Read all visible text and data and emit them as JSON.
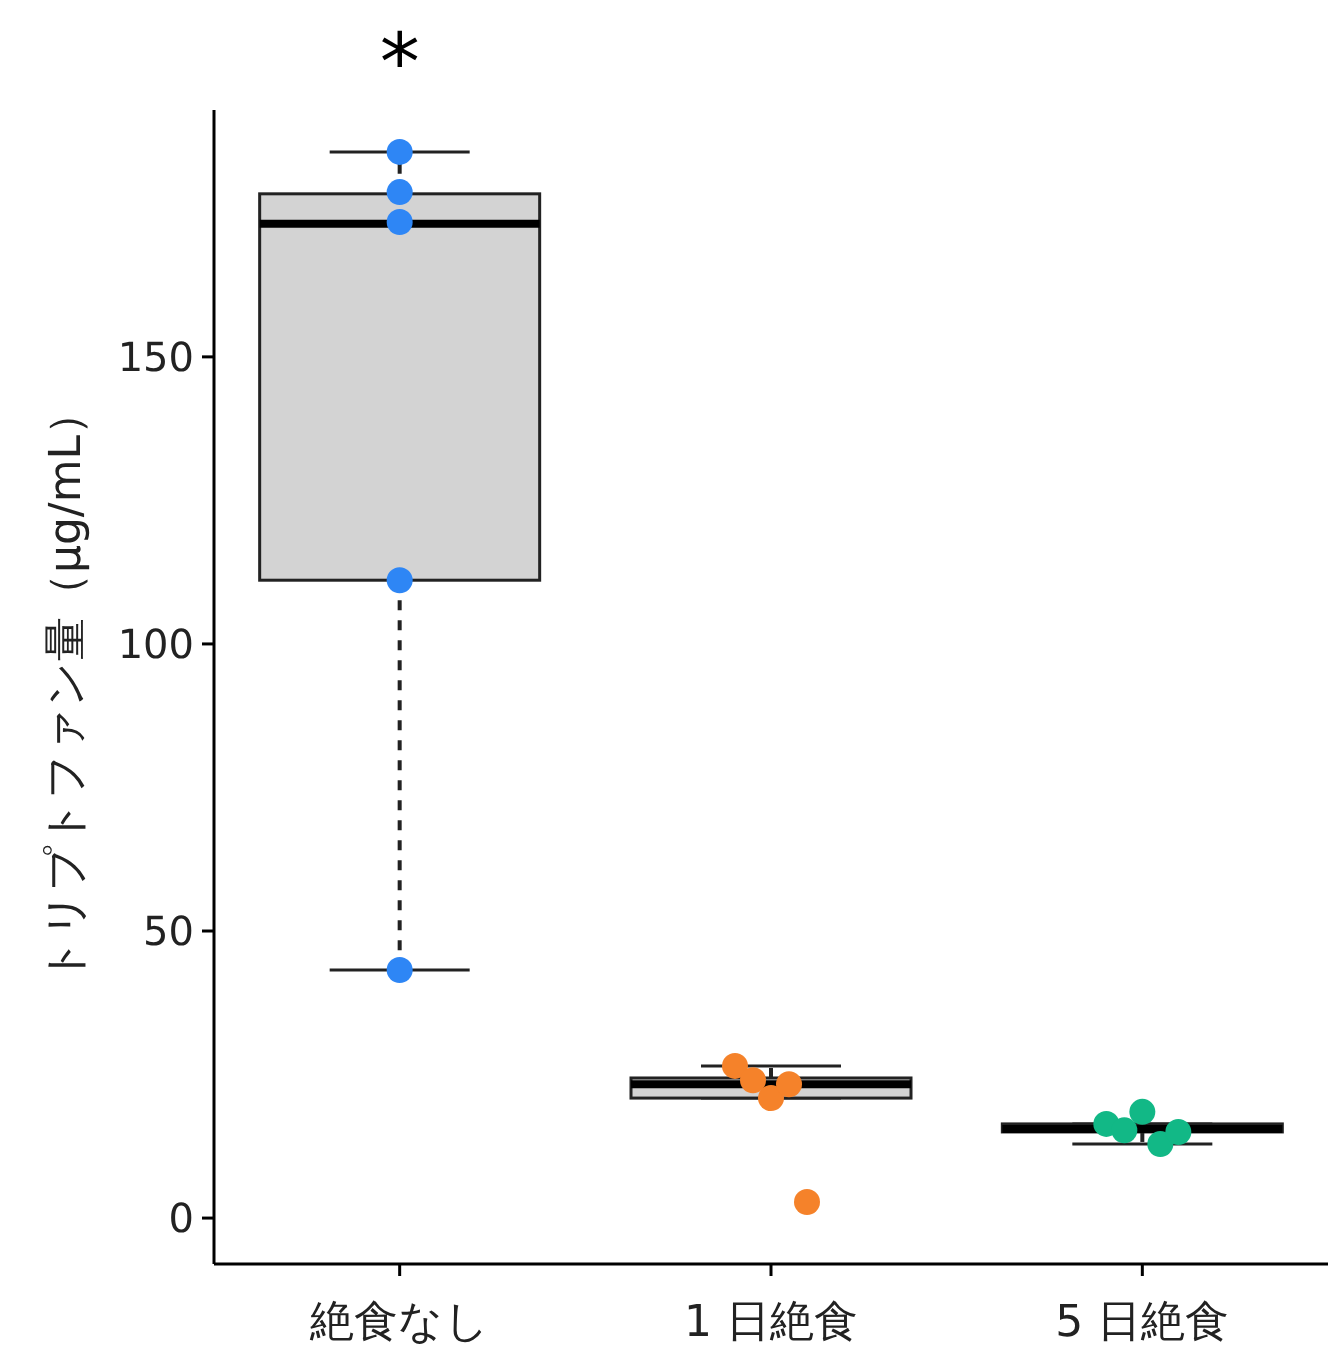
{
  "chart_data": {
    "type": "box",
    "ylabel": "トリプトファン量（μg/mL）",
    "categories": [
      "絶食なし",
      "1 日絶食",
      "5 日絶食"
    ],
    "color": "#d3d3d3",
    "line_style": "dashed",
    "grid": false,
    "boxes": [
      {
        "low": 43.2,
        "q1": 111.1,
        "median": 173.2,
        "q3": 178.4,
        "high": 185.7
      },
      {
        "low": 20.9,
        "q1": 20.9,
        "median": 23.3,
        "q3": 24.4,
        "high": 26.5
      },
      {
        "low": 12.9,
        "q1": 15.0,
        "median": 15.5,
        "q3": 16.4,
        "high": 16.4
      }
    ],
    "series": [
      {
        "type": "scatter",
        "color": "#2e86f5",
        "x": [
          "絶食なし",
          "絶食なし",
          "絶食なし",
          "絶食なし",
          "絶食なし"
        ],
        "values": [
          185.7,
          178.7,
          173.5,
          111.1,
          43.2
        ]
      },
      {
        "type": "scatter",
        "color": "#f5822a",
        "x": [
          "1 日絶食",
          "1 日絶食",
          "1 日絶食",
          "1 日絶食",
          "1 日絶食"
        ],
        "values": [
          26.5,
          24.0,
          20.9,
          23.3,
          2.8
        ]
      },
      {
        "type": "scatter",
        "color": "#12b886",
        "x": [
          "5 日絶食",
          "5 日絶食",
          "5 日絶食",
          "5 日絶食",
          "5 日絶食"
        ],
        "values": [
          16.4,
          15.3,
          18.5,
          12.9,
          15.0
        ]
      }
    ],
    "ylim": [
      -8,
      193
    ],
    "yticks": [
      0,
      50,
      100,
      150
    ],
    "annotations": [
      "*"
    ]
  }
}
